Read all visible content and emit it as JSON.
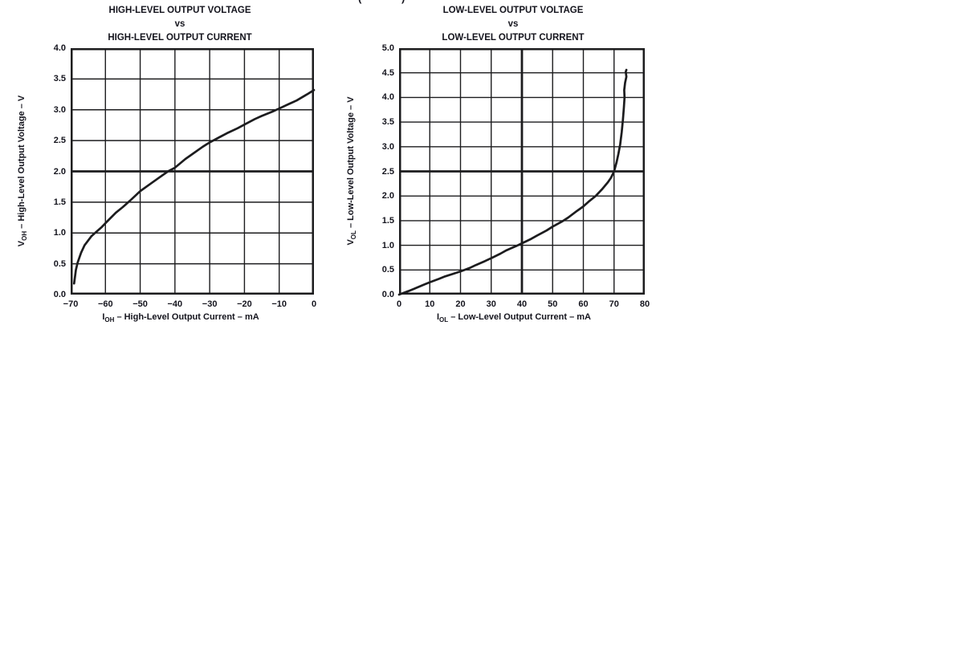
{
  "page": {
    "background_color": "#ffffff",
    "line_color": "#1c1c1e",
    "text_color": "#14141d"
  },
  "top_fragment": {
    "left_paren": "(",
    "right_paren": ")"
  },
  "chart_data": [
    {
      "type": "line",
      "title": "HIGH-LEVEL OUTPUT VOLTAGE vs HIGH-LEVEL OUTPUT CURRENT",
      "title_lines": [
        "HIGH-LEVEL OUTPUT VOLTAGE",
        "vs",
        "HIGH-LEVEL OUTPUT CURRENT"
      ],
      "ylabel": "VOH – High-Level Output Voltage – V",
      "ylabel_parts": {
        "pre": "V",
        "sub": "OH",
        "post": " – High-Level Output Voltage – V"
      },
      "xlabel": "IOH – High-Level Output Current – mA",
      "xlabel_parts": {
        "pre": "I",
        "sub": "OH",
        "post": " – High-Level Output Current – mA"
      },
      "xlim": [
        -70,
        0
      ],
      "ylim": [
        0,
        4
      ],
      "x_tick_values": [
        -70,
        -60,
        -50,
        -40,
        -30,
        -20,
        -10,
        0
      ],
      "x_tick_labels": [
        "−70",
        "−60",
        "−50",
        "−40",
        "−30",
        "−20",
        "−10",
        "0"
      ],
      "y_tick_values": [
        4.0,
        3.5,
        3.0,
        2.5,
        2.0,
        1.5,
        1.0,
        0.5,
        0.0
      ],
      "y_tick_labels": [
        "4.0",
        "3.5",
        "3.0",
        "2.5",
        "2.0",
        "1.5",
        "1.0",
        "0.5",
        "0.0"
      ],
      "bold_x_gridlines": [],
      "bold_y_gridlines": [
        2.0
      ],
      "grid": true,
      "legend": null,
      "points": [
        [
          -69,
          0.18
        ],
        [
          -68.5,
          0.4
        ],
        [
          -68,
          0.52
        ],
        [
          -67,
          0.68
        ],
        [
          -66,
          0.8
        ],
        [
          -64,
          0.95
        ],
        [
          -63,
          1.0
        ],
        [
          -61,
          1.1
        ],
        [
          -60,
          1.16
        ],
        [
          -57,
          1.33
        ],
        [
          -55,
          1.42
        ],
        [
          -53,
          1.52
        ],
        [
          -50,
          1.68
        ],
        [
          -47,
          1.8
        ],
        [
          -45,
          1.88
        ],
        [
          -42,
          2.0
        ],
        [
          -40,
          2.06
        ],
        [
          -37,
          2.2
        ],
        [
          -35,
          2.28
        ],
        [
          -32,
          2.4
        ],
        [
          -30,
          2.47
        ],
        [
          -27,
          2.56
        ],
        [
          -25,
          2.62
        ],
        [
          -22,
          2.7
        ],
        [
          -20,
          2.76
        ],
        [
          -17,
          2.85
        ],
        [
          -15,
          2.9
        ],
        [
          -12,
          2.97
        ],
        [
          -10,
          3.02
        ],
        [
          -7,
          3.1
        ],
        [
          -5,
          3.15
        ],
        [
          -2,
          3.25
        ],
        [
          0,
          3.32
        ]
      ]
    },
    {
      "type": "line",
      "title": "LOW-LEVEL OUTPUT VOLTAGE vs LOW-LEVEL OUTPUT CURRENT",
      "title_lines": [
        "LOW-LEVEL OUTPUT VOLTAGE",
        "vs",
        "LOW-LEVEL OUTPUT CURRENT"
      ],
      "ylabel": "VOL – Low-Level Output Voltage – V",
      "ylabel_parts": {
        "pre": "V",
        "sub": "OL",
        "post": " – Low-Level Output Voltage – V"
      },
      "xlabel": "IOL – Low-Level Output Current – mA",
      "xlabel_parts": {
        "pre": "I",
        "sub": "OL",
        "post": " – Low-Level Output Current – mA"
      },
      "xlim": [
        0,
        80
      ],
      "ylim": [
        0,
        5
      ],
      "x_tick_values": [
        0,
        10,
        20,
        30,
        40,
        50,
        60,
        70,
        80
      ],
      "x_tick_labels": [
        "0",
        "10",
        "20",
        "30",
        "40",
        "50",
        "60",
        "70",
        "80"
      ],
      "y_tick_values": [
        5.0,
        4.5,
        4.0,
        3.5,
        3.0,
        2.5,
        2.0,
        1.5,
        1.0,
        0.5,
        0.0
      ],
      "y_tick_labels": [
        "5.0",
        "4.5",
        "4.0",
        "3.5",
        "3.0",
        "2.5",
        "2.0",
        "1.5",
        "1.0",
        "0.5",
        "0.0"
      ],
      "bold_x_gridlines": [
        40
      ],
      "bold_y_gridlines": [
        2.5
      ],
      "grid": true,
      "legend": null,
      "points": [
        [
          0,
          0
        ],
        [
          3,
          0.07
        ],
        [
          5,
          0.12
        ],
        [
          8,
          0.2
        ],
        [
          10,
          0.25
        ],
        [
          13,
          0.32
        ],
        [
          15,
          0.37
        ],
        [
          18,
          0.43
        ],
        [
          20,
          0.47
        ],
        [
          23,
          0.54
        ],
        [
          25,
          0.6
        ],
        [
          28,
          0.68
        ],
        [
          30,
          0.74
        ],
        [
          33,
          0.83
        ],
        [
          35,
          0.9
        ],
        [
          38,
          0.98
        ],
        [
          40,
          1.04
        ],
        [
          43,
          1.13
        ],
        [
          45,
          1.2
        ],
        [
          48,
          1.3
        ],
        [
          50,
          1.38
        ],
        [
          53,
          1.48
        ],
        [
          55,
          1.56
        ],
        [
          58,
          1.7
        ],
        [
          60,
          1.79
        ],
        [
          62,
          1.9
        ],
        [
          64,
          2.0
        ],
        [
          66,
          2.13
        ],
        [
          68,
          2.28
        ],
        [
          69,
          2.37
        ],
        [
          70,
          2.5
        ],
        [
          70.8,
          2.68
        ],
        [
          71.4,
          2.85
        ],
        [
          72,
          3.05
        ],
        [
          72.5,
          3.3
        ],
        [
          72.9,
          3.55
        ],
        [
          73.2,
          3.8
        ],
        [
          73.4,
          4.0
        ],
        [
          73.3,
          4.15
        ],
        [
          73.6,
          4.3
        ],
        [
          74.0,
          4.42
        ],
        [
          73.8,
          4.52
        ],
        [
          74.0,
          4.56
        ]
      ]
    }
  ]
}
